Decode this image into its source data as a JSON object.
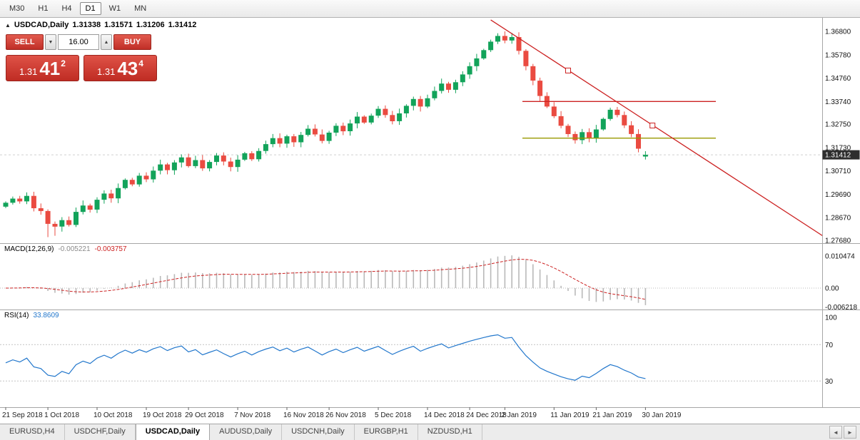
{
  "toolbar": {
    "timeframes": [
      {
        "label": "M30",
        "active": false
      },
      {
        "label": "H1",
        "active": false
      },
      {
        "label": "H4",
        "active": false
      },
      {
        "label": "D1",
        "active": true
      },
      {
        "label": "W1",
        "active": false
      },
      {
        "label": "MN",
        "active": false
      }
    ]
  },
  "icons": {
    "collapse_arrow": "▲",
    "volume_down": "▼",
    "volume_up": "▲",
    "scroll_left": "◄",
    "scroll_right": "►"
  },
  "chart": {
    "header": {
      "symbol": "USDCAD,Daily",
      "open": "1.31338",
      "high": "1.31571",
      "low": "1.31206",
      "close": "1.31412"
    },
    "price_axis_labels": [
      "1.36800",
      "1.35780",
      "1.34760",
      "1.33740",
      "1.32750",
      "1.31730",
      "1.30710",
      "1.29690",
      "1.28670",
      "1.27680"
    ],
    "current_price_tag": "1.31412"
  },
  "trade": {
    "sell_label": "SELL",
    "buy_label": "BUY",
    "volume": "16.00",
    "sell_price": {
      "big": "1.31",
      "pips": "41",
      "sup": "2"
    },
    "buy_price": {
      "big": "1.31",
      "pips": "43",
      "sup": "4"
    }
  },
  "macd": {
    "label": "MACD(12,26,9)",
    "value_main": "-0.005221",
    "value_signal": "-0.003757",
    "axis_labels": [
      "0.010474",
      "0.00",
      "-0.006218"
    ],
    "axis_values": [
      0.010474,
      0,
      -0.006218
    ]
  },
  "rsi": {
    "label": "RSI(14)",
    "value": "33.8609",
    "axis_labels": [
      "100",
      "70",
      "30"
    ],
    "axis_values": [
      100,
      70,
      30
    ],
    "levels": [
      70,
      30
    ]
  },
  "time_axis": [
    {
      "i": 0,
      "label": "21 Sep 2018"
    },
    {
      "i": 6,
      "label": "1 Oct 2018"
    },
    {
      "i": 13,
      "label": "10 Oct 2018"
    },
    {
      "i": 20,
      "label": "19 Oct 2018"
    },
    {
      "i": 26,
      "label": "29 Oct 2018"
    },
    {
      "i": 33,
      "label": "7 Nov 2018"
    },
    {
      "i": 40,
      "label": "16 Nov 2018"
    },
    {
      "i": 46,
      "label": "26 Nov 2018"
    },
    {
      "i": 53,
      "label": "5 Dec 2018"
    },
    {
      "i": 60,
      "label": "14 Dec 2018"
    },
    {
      "i": 66,
      "label": "24 Dec 2018"
    },
    {
      "i": 71,
      "label": "2 Jan 2019"
    },
    {
      "i": 78,
      "label": "11 Jan 2019"
    },
    {
      "i": 84,
      "label": "21 Jan 2019"
    },
    {
      "i": 91,
      "label": "30 Jan 2019"
    }
  ],
  "bottom_tabs": [
    {
      "label": "EURUSD,H4",
      "active": false
    },
    {
      "label": "USDCHF,Daily",
      "active": false
    },
    {
      "label": "USDCAD,Daily",
      "active": true
    },
    {
      "label": "AUDUSD,Daily",
      "active": false
    },
    {
      "label": "USDCNH,Daily",
      "active": false
    },
    {
      "label": "EURGBP,H1",
      "active": false
    },
    {
      "label": "NZDUSD,H1",
      "active": false
    }
  ],
  "colors": {
    "bull": "#12a35a",
    "bear": "#ea4b41",
    "trendline": "#cc2222",
    "resistance_line": "#cc2222",
    "support_line": "#999900",
    "macd_hist": "#b9b9b9",
    "macd_signal": "#cc2222",
    "rsi_line": "#2277cc",
    "panel_red": "#cf3b32"
  },
  "chart_data": {
    "type": "candlestick",
    "symbol": "USDCAD",
    "timeframe": "Daily",
    "ylim": [
      1.2768,
      1.374
    ],
    "bid_price": 1.31412,
    "first_open": 1.2915,
    "closes": [
      1.2932,
      1.295,
      1.2938,
      1.2962,
      1.2908,
      1.2896,
      1.284,
      1.2828,
      1.2856,
      1.2835,
      1.2892,
      1.292,
      1.2902,
      1.2945,
      1.2972,
      1.2951,
      1.2996,
      1.3032,
      1.3012,
      1.305,
      1.3034,
      1.3072,
      1.3099,
      1.3074,
      1.3108,
      1.313,
      1.3092,
      1.3118,
      1.3082,
      1.311,
      1.3138,
      1.3112,
      1.3088,
      1.312,
      1.3148,
      1.3122,
      1.3158,
      1.3188,
      1.3214,
      1.319,
      1.3222,
      1.3196,
      1.3228,
      1.3255,
      1.323,
      1.3202,
      1.3238,
      1.3268,
      1.3244,
      1.3278,
      1.3308,
      1.3282,
      1.3312,
      1.3342,
      1.3315,
      1.3288,
      1.3322,
      1.3355,
      1.3385,
      1.3352,
      1.3388,
      1.342,
      1.3452,
      1.3425,
      1.3458,
      1.3492,
      1.3528,
      1.3562,
      1.3598,
      1.3635,
      1.366,
      1.364,
      1.3655,
      1.3595,
      1.3528,
      1.3465,
      1.3398,
      1.3352,
      1.331,
      1.3268,
      1.3232,
      1.3205,
      1.324,
      1.3215,
      1.3252,
      1.3298,
      1.3338,
      1.3315,
      1.327,
      1.3232,
      1.3168,
      1.31412
    ],
    "overrides": {
      "6": {
        "low": 1.2782
      },
      "7": {
        "low": 1.2788
      },
      "71": {
        "high": 1.368
      },
      "91": {
        "open": 1.31338,
        "high": 1.31571,
        "low": 1.31206,
        "close": 1.31412
      }
    },
    "levels": [
      {
        "price": 1.3374,
        "color_key": "resistance_line",
        "from_i": 73.5,
        "to_i": 101
      },
      {
        "price": 1.3214,
        "color_key": "support_line",
        "from_i": 73.5,
        "to_i": 101
      }
    ],
    "trendline": {
      "x1_i": 69,
      "p1": 1.373,
      "x2_i": 116.5,
      "p2": 1.2782,
      "handles": [
        {
          "i": 80,
          "p": 1.3509
        },
        {
          "i": 92,
          "p": 1.3269
        }
      ]
    },
    "indicators": [
      {
        "name": "MACD",
        "params": [
          12,
          26,
          9
        ],
        "values_shown": [
          -0.005221,
          -0.003757
        ]
      },
      {
        "name": "RSI",
        "params": [
          14
        ],
        "value_shown": 33.8609
      }
    ]
  }
}
